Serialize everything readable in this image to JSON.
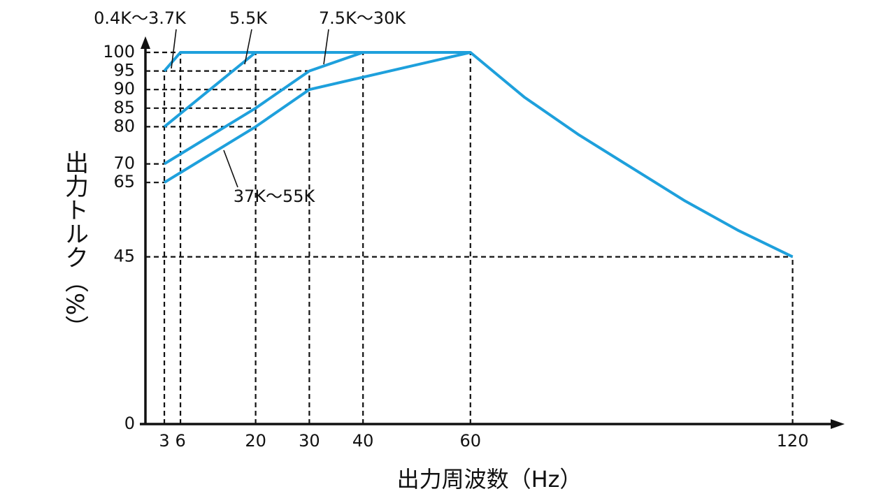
{
  "chart_data": {
    "type": "line",
    "x_label": "出力周波数（Hz）",
    "y_label": "出力トルク（%）",
    "xlim": [
      0,
      128
    ],
    "ylim": [
      0,
      100
    ],
    "xticks": [
      3,
      6,
      20,
      30,
      40,
      60,
      120
    ],
    "yticks": [
      0,
      45,
      65,
      70,
      80,
      85,
      90,
      95,
      100
    ],
    "series": [
      {
        "name": "0.4K～3.7K",
        "color": "#1ea0dc",
        "x": [
          3,
          6,
          60,
          70,
          80,
          90,
          100,
          110,
          120
        ],
        "values": [
          95,
          100,
          100,
          88,
          78,
          69,
          60,
          52,
          45
        ]
      },
      {
        "name": "5.5K",
        "color": "#1ea0dc",
        "x": [
          3,
          20
        ],
        "values": [
          80,
          100
        ]
      },
      {
        "name": "7.5K～30K",
        "color": "#1ea0dc",
        "x": [
          3,
          20,
          30,
          40
        ],
        "values": [
          70,
          85,
          95,
          100
        ]
      },
      {
        "name": "37K～55K",
        "color": "#1ea0dc",
        "x": [
          3,
          20,
          30,
          60
        ],
        "values": [
          65,
          80,
          90,
          100
        ]
      }
    ]
  }
}
